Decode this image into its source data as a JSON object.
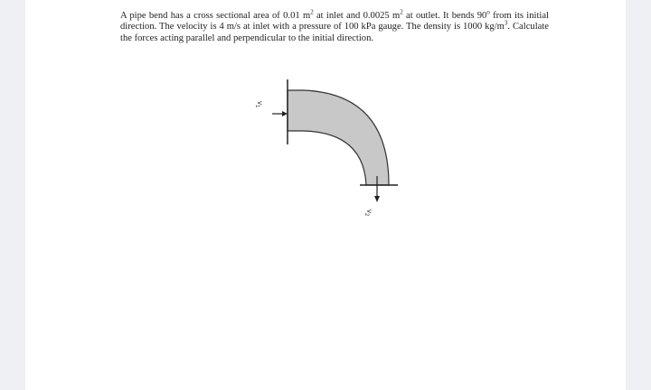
{
  "problem": {
    "parts": [
      "A pipe bend has a cross sectional area of 0.01 m",
      "2",
      " at inlet and 0.0025 m",
      "2",
      " at outlet. It bends 90",
      "o",
      " from its initial direction. The velocity is 4 m/s at inlet with a pressure of 100 kPa gauge. The density is 1000 kg/m",
      "3",
      ". Calculate the forces acting parallel and perpendicular to the initial direction."
    ]
  },
  "diagram": {
    "inlet_label": {
      "symbol": "v",
      "subscript": "1"
    },
    "outlet_label": {
      "symbol": "v",
      "subscript": "2"
    }
  }
}
